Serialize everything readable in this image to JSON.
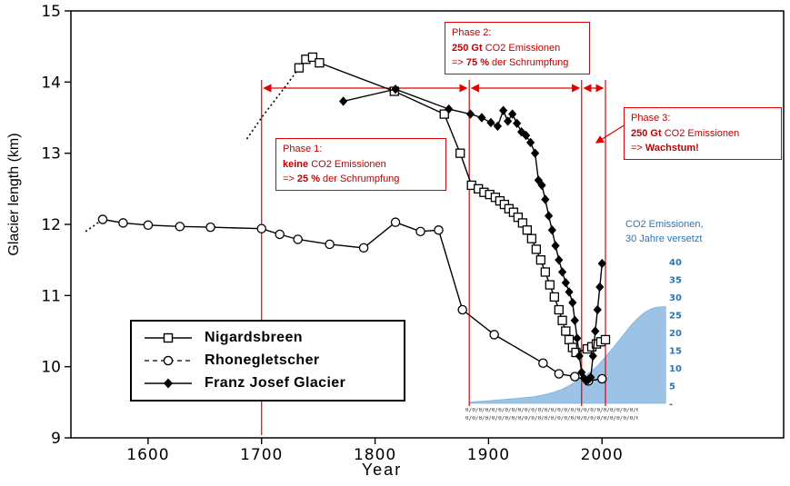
{
  "axes": {
    "x_label": "Year",
    "y_label": "Glacier length (km)",
    "x_ticks": [
      1600,
      1700,
      1800,
      1900,
      2000
    ],
    "y_ticks": [
      9,
      10,
      11,
      12,
      13,
      14,
      15
    ]
  },
  "chart_data": {
    "type": "line",
    "title": "",
    "xlabel": "Year",
    "ylabel": "Glacier length (km)",
    "xlim": [
      1532,
      2160
    ],
    "ylim": [
      9,
      15
    ],
    "series": [
      {
        "name": "Nigardsbreen",
        "marker": "square",
        "fill": "open",
        "lead": [
          [
            1687,
            13.2
          ],
          [
            1700,
            13.5
          ],
          [
            1712,
            13.75
          ],
          [
            1724,
            14.0
          ]
        ],
        "points": [
          [
            1733,
            14.2
          ],
          [
            1739,
            14.32
          ],
          [
            1745,
            14.35
          ],
          [
            1751,
            14.27
          ],
          [
            1817,
            13.87
          ],
          [
            1861,
            13.55
          ],
          [
            1875,
            13.0
          ],
          [
            1885,
            12.55
          ],
          [
            1891,
            12.5
          ],
          [
            1896,
            12.45
          ],
          [
            1901,
            12.42
          ],
          [
            1906,
            12.38
          ],
          [
            1910,
            12.33
          ],
          [
            1914,
            12.28
          ],
          [
            1918,
            12.22
          ],
          [
            1922,
            12.17
          ],
          [
            1926,
            12.1
          ],
          [
            1930,
            12.02
          ],
          [
            1934,
            11.92
          ],
          [
            1938,
            11.8
          ],
          [
            1942,
            11.65
          ],
          [
            1946,
            11.5
          ],
          [
            1950,
            11.33
          ],
          [
            1954,
            11.15
          ],
          [
            1958,
            10.98
          ],
          [
            1962,
            10.8
          ],
          [
            1965,
            10.65
          ],
          [
            1968,
            10.5
          ],
          [
            1971,
            10.38
          ],
          [
            1974,
            10.27
          ],
          [
            1977,
            10.2
          ],
          [
            1987,
            10.25
          ],
          [
            1991,
            10.28
          ],
          [
            1995,
            10.32
          ],
          [
            1999,
            10.35
          ],
          [
            2003,
            10.38
          ]
        ]
      },
      {
        "name": "Rhonegletscher",
        "marker": "circle",
        "fill": "open",
        "lead": [
          [
            1545,
            11.9
          ],
          [
            1552,
            11.98
          ]
        ],
        "points": [
          [
            1560,
            12.07
          ],
          [
            1578,
            12.02
          ],
          [
            1600,
            11.99
          ],
          [
            1628,
            11.97
          ],
          [
            1655,
            11.96
          ],
          [
            1700,
            11.94
          ],
          [
            1716,
            11.86
          ],
          [
            1732,
            11.79
          ],
          [
            1760,
            11.72
          ],
          [
            1790,
            11.67
          ],
          [
            1818,
            12.03
          ],
          [
            1840,
            11.9
          ],
          [
            1856,
            11.92
          ],
          [
            1877,
            10.8
          ],
          [
            1905,
            10.45
          ],
          [
            1948,
            10.05
          ],
          [
            1962,
            9.9
          ],
          [
            1976,
            9.86
          ],
          [
            1988,
            9.8
          ],
          [
            2000,
            9.83
          ]
        ]
      },
      {
        "name": "Franz Josef Glacier",
        "marker": "diamond",
        "fill": "solid",
        "lead": [],
        "points": [
          [
            1772,
            13.73
          ],
          [
            1818,
            13.9
          ],
          [
            1865,
            13.62
          ],
          [
            1884,
            13.55
          ],
          [
            1894,
            13.5
          ],
          [
            1902,
            13.43
          ],
          [
            1908,
            13.38
          ],
          [
            1913,
            13.6
          ],
          [
            1917,
            13.45
          ],
          [
            1921,
            13.55
          ],
          [
            1925,
            13.42
          ],
          [
            1929,
            13.3
          ],
          [
            1933,
            13.25
          ],
          [
            1937,
            13.15
          ],
          [
            1941,
            13.0
          ],
          [
            1944,
            12.62
          ],
          [
            1947,
            12.55
          ],
          [
            1950,
            12.35
          ],
          [
            1953,
            12.12
          ],
          [
            1956,
            11.92
          ],
          [
            1959,
            11.7
          ],
          [
            1962,
            11.5
          ],
          [
            1965,
            11.33
          ],
          [
            1968,
            11.18
          ],
          [
            1971,
            11.05
          ],
          [
            1974,
            10.9
          ],
          [
            1976,
            10.65
          ],
          [
            1978,
            10.4
          ],
          [
            1980,
            10.15
          ],
          [
            1982,
            9.92
          ],
          [
            1984,
            9.84
          ],
          [
            1986,
            9.8
          ],
          [
            1988,
            9.82
          ],
          [
            1990,
            9.85
          ],
          [
            1992,
            10.15
          ],
          [
            1994,
            10.5
          ],
          [
            1996,
            10.8
          ],
          [
            1998,
            11.12
          ],
          [
            2000,
            11.45
          ]
        ]
      }
    ],
    "emissions": {
      "label_lines": [
        "CO2 Emissionen,",
        "30 Jahre versetzt"
      ],
      "color": "#9cc3e5",
      "edge_color": "#7fb2dd",
      "text_color": "#2e74b5",
      "axis_ticks": [
        "40",
        "35",
        "30",
        "25",
        "20",
        "15",
        "10",
        "5",
        "-"
      ],
      "axis_values": [
        40,
        35,
        30,
        25,
        20,
        15,
        10,
        5,
        0
      ],
      "points": [
        [
          1883,
          0.3
        ],
        [
          1895,
          0.6
        ],
        [
          1910,
          1.0
        ],
        [
          1925,
          1.4
        ],
        [
          1940,
          1.9
        ],
        [
          1950,
          2.5
        ],
        [
          1958,
          3.2
        ],
        [
          1965,
          4.0
        ],
        [
          1972,
          5.2
        ],
        [
          1978,
          6.3
        ],
        [
          1984,
          7.6
        ],
        [
          1990,
          9.0
        ],
        [
          1996,
          10.6
        ],
        [
          2002,
          12.8
        ],
        [
          2008,
          15.0
        ],
        [
          2014,
          17.4
        ],
        [
          2020,
          19.8
        ],
        [
          2026,
          22.2
        ],
        [
          2032,
          24.2
        ],
        [
          2038,
          25.8
        ],
        [
          2044,
          26.8
        ],
        [
          2050,
          27.2
        ],
        [
          2056,
          27.3
        ]
      ]
    }
  },
  "annotations": {
    "red_color": "#e00000",
    "text_color": "#c00000",
    "phase_line_years": [
      1700,
      1883,
      1982,
      2003
    ],
    "phase1": {
      "l1": "Phase 1:",
      "l2b": "keine",
      "l2r": " CO2 Emissionen",
      "l3p": "=> ",
      "l3b": "25 %",
      "l3r": " der Schrumpfung"
    },
    "phase2": {
      "l1": "Phase 2:",
      "l2b": "250 Gt",
      "l2r": " CO2 Emissionen",
      "l3p": "=> ",
      "l3b": "75 %",
      "l3r": " der Schrumpfung"
    },
    "phase3": {
      "l1": "Phase 3:",
      "l2b": "250 Gt",
      "l2r": " CO2 Emissionen",
      "l3p": "=> ",
      "l3b": "Wachstum!",
      "l3r": ""
    },
    "micro_rows": [
      "0/0/0/0/0/0/0/0/0/0/0/0/0/0/0/0/0/0/0/0/0/0/0/0/0/0/0/0/0/0/",
      "0/0/0/0/0/0/0/0/0/0/0/0/0/0/0/0/0/0/0/0/0/0/0/0/0/0/0/0/0/0/"
    ]
  }
}
